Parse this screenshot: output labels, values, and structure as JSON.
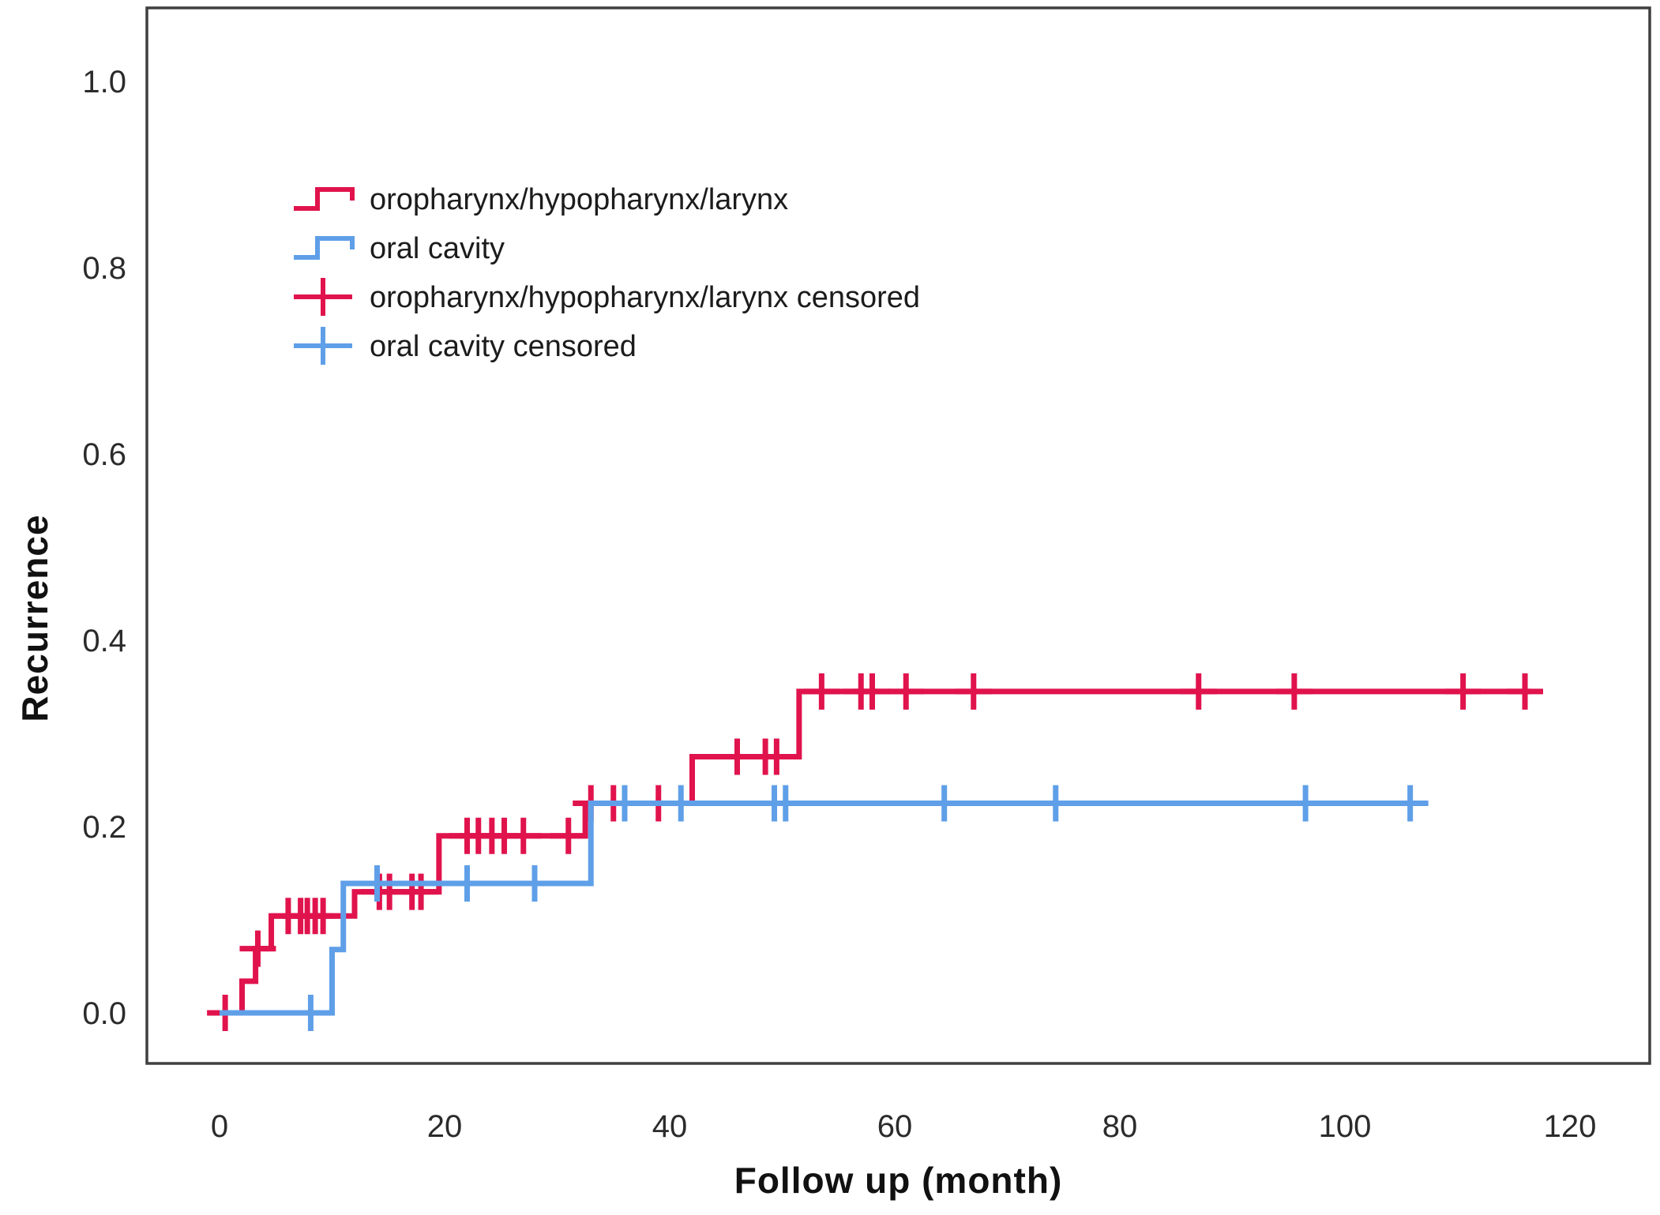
{
  "page": {
    "background": "#ffffff"
  },
  "chart_data": {
    "type": "line",
    "subtype": "kaplan-meier-cumulative-incidence-steps",
    "title": "",
    "xlabel": "Follow up (month)",
    "ylabel": "Recurrence",
    "xticks": [
      0,
      20,
      40,
      60,
      80,
      100,
      120
    ],
    "ytick_labels": [
      "0.0",
      "0.2",
      "0.4",
      "0.6",
      "0.8",
      "1.0"
    ],
    "xlim": [
      -6.5,
      128
    ],
    "ylim": [
      -0.055,
      1.06
    ],
    "grid": false,
    "legend_position": "upper-left-inside",
    "frame_color": "#3f3f3f",
    "tick_label_color": "#2b2b2b",
    "series": [
      {
        "name": "oropharynx/hypopharynx/larynx",
        "color": "#e0134d",
        "steps": [
          [
            0,
            0
          ],
          [
            2,
            0.034
          ],
          [
            3.2,
            0.069
          ],
          [
            4.6,
            0.104
          ],
          [
            12,
            0.13
          ],
          [
            19.5,
            0.19
          ],
          [
            32.5,
            0.225
          ],
          [
            42,
            0.275
          ],
          [
            51.5,
            0.345
          ]
        ],
        "end_time": 116.5,
        "censors": [
          [
            0.5,
            0
          ],
          [
            3.4,
            0.069
          ],
          [
            6.1,
            0.104
          ],
          [
            7.2,
            0.104
          ],
          [
            7.8,
            0.104
          ],
          [
            8.5,
            0.104
          ],
          [
            9.2,
            0.104
          ],
          [
            14.2,
            0.13
          ],
          [
            15.1,
            0.13
          ],
          [
            17.1,
            0.13
          ],
          [
            17.9,
            0.13
          ],
          [
            22,
            0.19
          ],
          [
            23,
            0.19
          ],
          [
            24.2,
            0.19
          ],
          [
            25.3,
            0.19
          ],
          [
            27,
            0.19
          ],
          [
            31,
            0.19
          ],
          [
            33,
            0.225
          ],
          [
            35,
            0.225
          ],
          [
            39,
            0.225
          ],
          [
            46,
            0.275
          ],
          [
            48.5,
            0.275
          ],
          [
            49.5,
            0.275
          ],
          [
            53.5,
            0.345
          ],
          [
            57,
            0.345
          ],
          [
            58,
            0.345
          ],
          [
            61,
            0.345
          ],
          [
            67,
            0.345
          ],
          [
            87,
            0.345
          ],
          [
            95.5,
            0.345
          ],
          [
            110.5,
            0.345
          ],
          [
            116,
            0.345
          ]
        ]
      },
      {
        "name": "oral cavity",
        "color": "#5f9fe8",
        "steps": [
          [
            0,
            0
          ],
          [
            10,
            0.068
          ],
          [
            11,
            0.139
          ],
          [
            33,
            0.225
          ]
        ],
        "end_time": 106.5,
        "censors": [
          [
            8.1,
            0
          ],
          [
            14,
            0.139
          ],
          [
            22,
            0.139
          ],
          [
            28,
            0.139
          ],
          [
            36,
            0.225
          ],
          [
            41,
            0.225
          ],
          [
            49.3,
            0.225
          ],
          [
            50.3,
            0.225
          ],
          [
            64.4,
            0.225
          ],
          [
            74.3,
            0.225
          ],
          [
            96.5,
            0.225
          ],
          [
            105.8,
            0.225
          ]
        ]
      }
    ],
    "legend": {
      "items": [
        {
          "label": "oropharynx/hypopharynx/larynx",
          "color": "#e0134d",
          "symbol": "step"
        },
        {
          "label": "oral cavity",
          "color": "#5f9fe8",
          "symbol": "step"
        },
        {
          "label": "oropharynx/hypopharynx/larynx censored",
          "color": "#e0134d",
          "symbol": "plus"
        },
        {
          "label": "oral cavity censored",
          "color": "#5f9fe8",
          "symbol": "plus"
        }
      ]
    }
  }
}
